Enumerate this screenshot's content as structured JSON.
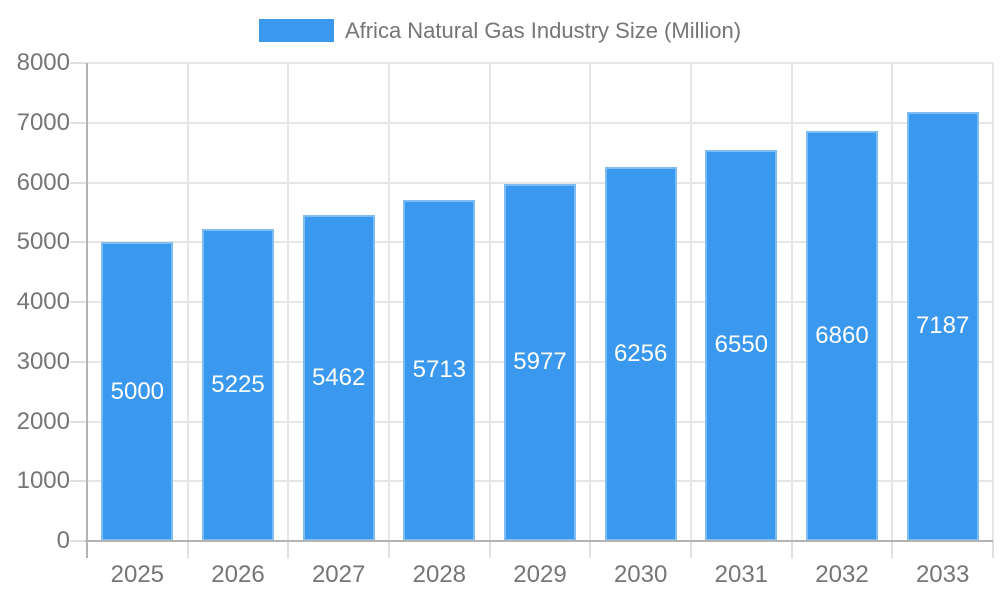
{
  "legend": {
    "label": "Africa Natural Gas Industry Size (Million)"
  },
  "chart_data": {
    "type": "bar",
    "title": "Africa Natural Gas Industry Size (Million)",
    "categories": [
      "2025",
      "2026",
      "2027",
      "2028",
      "2029",
      "2030",
      "2031",
      "2032",
      "2033"
    ],
    "values": [
      5000,
      5225,
      5462,
      5713,
      5977,
      6256,
      6550,
      6860,
      7187
    ],
    "xlabel": "",
    "ylabel": "",
    "ylim": [
      0,
      8000
    ],
    "ytick_interval": 1000,
    "yticks": [
      0,
      1000,
      2000,
      3000,
      4000,
      5000,
      6000,
      7000,
      8000
    ],
    "grid": true,
    "legend_position": "top",
    "bar_labels_visible": true,
    "colors": {
      "bar": "#3a99ee",
      "bar_border": "rgba(255,255,255,0.35)",
      "bar_label": "#ffffff",
      "axis_text": "#757575",
      "gridline": "#e6e6e6",
      "axis_line": "#b3b3b3",
      "tick": "#e0e0e0",
      "background": "#ffffff"
    }
  }
}
